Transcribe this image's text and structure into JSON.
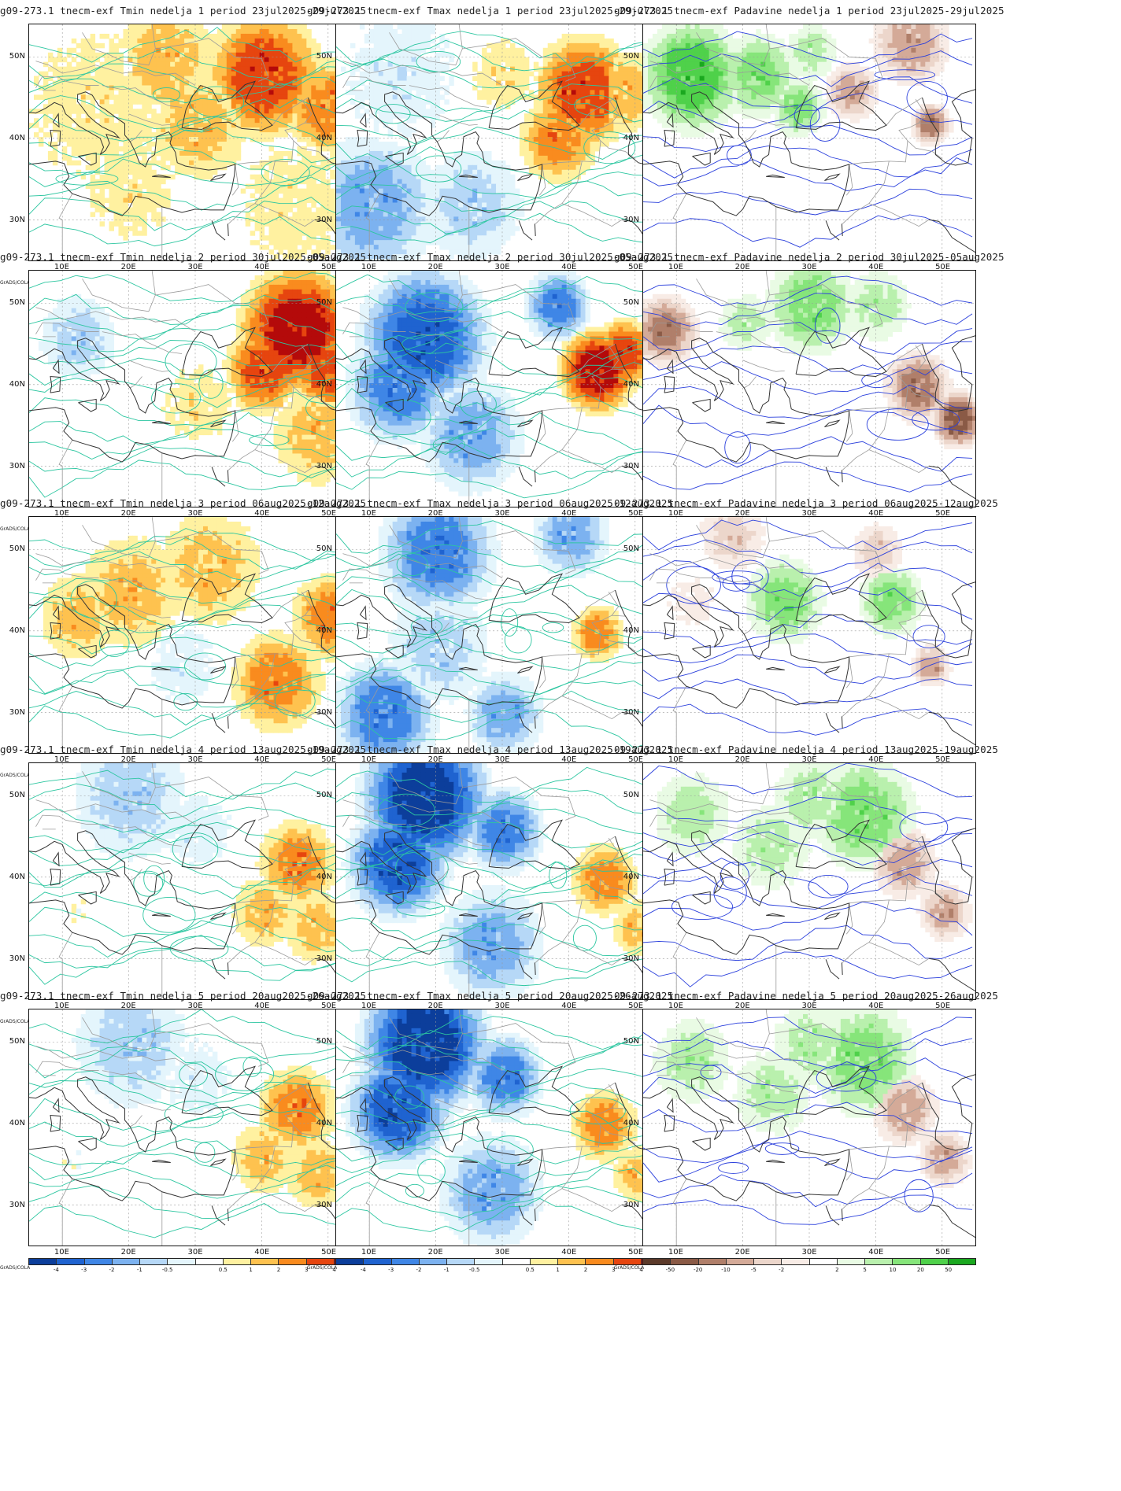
{
  "footer_credit": "GrADS/COLA",
  "axes": {
    "x_ticks": [
      "10E",
      "20E",
      "30E",
      "40E",
      "50E"
    ],
    "y_ticks": [
      "50N",
      "40N",
      "30N"
    ],
    "lon_range": [
      5,
      55
    ],
    "lat_range": [
      25,
      54
    ]
  },
  "legends": {
    "temp": {
      "labels": [
        "-4",
        "-3",
        "-2",
        "-1",
        "-0.5",
        "0.5",
        "1",
        "2",
        "3",
        "4"
      ],
      "colors": [
        "#0c3e9b",
        "#1f63d0",
        "#3f86e6",
        "#7cb2f0",
        "#b6d8f7",
        "#e4f5fc",
        "#ffffff",
        "#fff1a0",
        "#fec24f",
        "#f98b1e",
        "#e6450f",
        "#b40a0a"
      ]
    },
    "precip": {
      "labels": [
        "-50",
        "-20",
        "-10",
        "-5",
        "-2",
        "2",
        "5",
        "10",
        "20",
        "50"
      ],
      "colors": [
        "#5c3a2a",
        "#8a5a46",
        "#b07f6a",
        "#d4aa98",
        "#ecd6cb",
        "#f8ece6",
        "#ffffff",
        "#e9fbe4",
        "#b9f0ad",
        "#86e57a",
        "#4fd14a",
        "#1aa81f"
      ]
    }
  },
  "panels": [
    {
      "title": "g09-273.1 tnecm-exf Tmin nedelja 1 period 23jul2025-29jul2025",
      "kind": "temp",
      "field": "warm-strong"
    },
    {
      "title": "g09-273.1 tnecm-exf Tmax nedelja 1 period 23jul2025-29jul2025",
      "kind": "temp",
      "field": "mixed-warm"
    },
    {
      "title": "g09-273.1 tnecm-exf Padavine nedelja 1 period 23jul2025-29jul2025",
      "kind": "precip",
      "field": "wet-west"
    },
    {
      "title": "g09-273.1 tnecm-exf Tmin nedelja 2 period 30jul2025-05aug2025",
      "kind": "temp",
      "field": "warm-east"
    },
    {
      "title": "g09-273.1 tnecm-exf Tmax nedelja 2 period 30jul2025-05aug2025",
      "kind": "temp",
      "field": "cold-west"
    },
    {
      "title": "g09-273.1 tnecm-exf Padavine nedelja 2 period 30jul2025-05aug2025",
      "kind": "precip",
      "field": "dry-west"
    },
    {
      "title": "g09-273.1 tnecm-exf Tmin nedelja 3 period 06aug2025-12aug2025",
      "kind": "temp",
      "field": "warm-mod"
    },
    {
      "title": "g09-273.1 tnecm-exf Tmax nedelja 3 period 06aug2025-12aug2025",
      "kind": "temp",
      "field": "cold-mod"
    },
    {
      "title": "09-273.1 tnecm-exf Padavine nedelja 3 period 06aug2025-12aug2025",
      "kind": "precip",
      "field": "mixed"
    },
    {
      "title": "g09-273.1 tnecm-exf Tmin nedelja 4 period 13aug2025-19aug2025",
      "kind": "temp",
      "field": "cool-north"
    },
    {
      "title": "g09-273.1 tnecm-exf Tmax nedelja 4 period 13aug2025-19aug2025",
      "kind": "temp",
      "field": "cold-strong"
    },
    {
      "title": "09-273.1 tnecm-exf Padavine nedelja 4 period 13aug2025-19aug2025",
      "kind": "precip",
      "field": "wet-east"
    },
    {
      "title": "g09-273.1 tnecm-exf Tmin nedelja 5 period 20aug2025-26aug2025",
      "kind": "temp",
      "field": "cool-north"
    },
    {
      "title": "g09-273.1 tnecm-exf Tmax nedelja 5 period 20aug2025-26aug2025",
      "kind": "temp",
      "field": "cold-strong"
    },
    {
      "title": "09-273.1 tnecm-exf Padavine nedelja 5 period 20aug2025-26aug2025",
      "kind": "precip",
      "field": "wet-east"
    }
  ]
}
